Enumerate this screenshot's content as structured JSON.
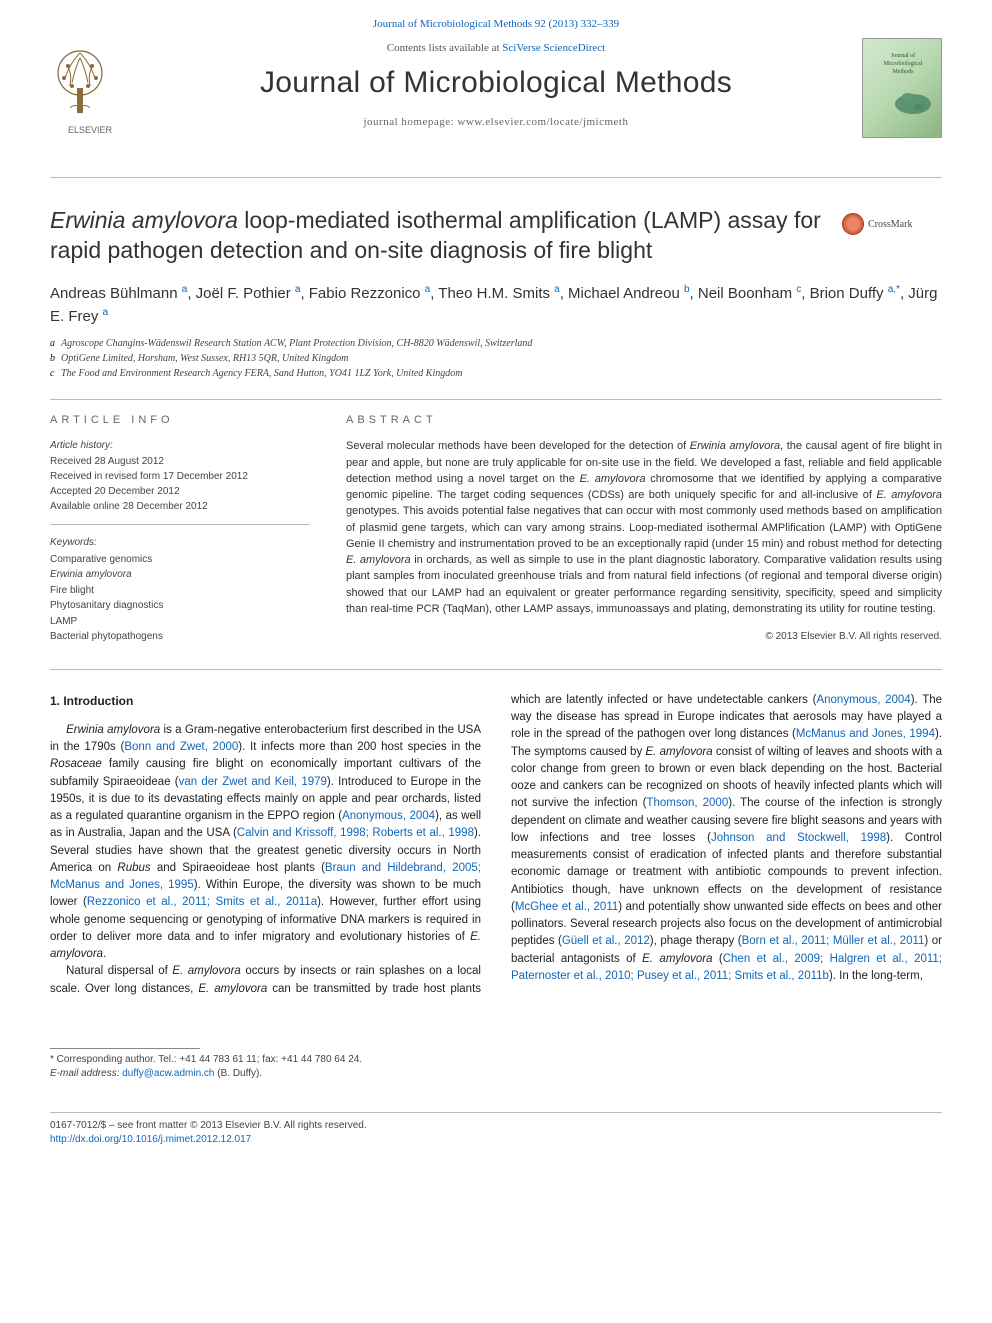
{
  "top_link": {
    "prefix": "Journal of Microbiological Methods 92 (2013) 332–339"
  },
  "header": {
    "contents_prefix": "Contents lists available at ",
    "contents_link": "SciVerse ScienceDirect",
    "journal_title": "Journal of Microbiological Methods",
    "homepage": "journal homepage: www.elsevier.com/locate/jmicmeth",
    "publisher": "ELSEVIER"
  },
  "crossmark_label": "CrossMark",
  "article": {
    "title_html": "<em>Erwinia amylovora</em> loop-mediated isothermal amplification (LAMP) assay for rapid pathogen detection and on-site diagnosis of fire blight",
    "authors_html": "Andreas Bühlmann <span class='sup'>a</span>, Joël F. Pothier <span class='sup'>a</span>, Fabio Rezzonico <span class='sup'>a</span>, Theo H.M. Smits <span class='sup'>a</span>, Michael Andreou <span class='sup'>b</span>, Neil Boonham <span class='sup'>c</span>, Brion Duffy <span class='sup'>a,*</span>, Jürg E. Frey <span class='sup'>a</span>",
    "affiliations": [
      {
        "label": "a",
        "text": "Agroscope Changins-Wädenswil Research Station ACW, Plant Protection Division, CH-8820 Wädenswil, Switzerland"
      },
      {
        "label": "b",
        "text": "OptiGene Limited, Horsham, West Sussex, RH13 5QR, United Kingdom"
      },
      {
        "label": "c",
        "text": "The Food and Environment Research Agency FERA, Sand Hutton, YO41 1LZ York, United Kingdom"
      }
    ]
  },
  "article_info": {
    "heading": "article info",
    "history_head": "Article history:",
    "history": [
      "Received 28 August 2012",
      "Received in revised form 17 December 2012",
      "Accepted 20 December 2012",
      "Available online 28 December 2012"
    ],
    "keywords_head": "Keywords:",
    "keywords": [
      "Comparative genomics",
      "<em>Erwinia amylovora</em>",
      "Fire blight",
      "Phytosanitary diagnostics",
      "LAMP",
      "Bacterial phytopathogens"
    ]
  },
  "abstract": {
    "heading": "abstract",
    "text_html": "Several molecular methods have been developed for the detection of <em>Erwinia amylovora</em>, the causal agent of fire blight in pear and apple, but none are truly applicable for on-site use in the field. We developed a fast, reliable and field applicable detection method using a novel target on the <em>E. amylovora</em> chromosome that we identified by applying a comparative genomic pipeline. The target coding sequences (CDSs) are both uniquely specific for and all-inclusive of <em>E. amylovora</em> genotypes. This avoids potential false negatives that can occur with most commonly used methods based on amplification of plasmid gene targets, which can vary among strains. Loop-mediated isothermal AMPlification (LAMP) with OptiGene Genie II chemistry and instrumentation proved to be an exceptionally rapid (under 15 min) and robust method for detecting <em>E. amylovora</em> in orchards, as well as simple to use in the plant diagnostic laboratory. Comparative validation results using plant samples from inoculated greenhouse trials and from natural field infections (of regional and temporal diverse origin) showed that our LAMP had an equivalent or greater performance regarding sensitivity, specificity, speed and simplicity than real-time PCR (TaqMan), other LAMP assays, immunoassays and plating, demonstrating its utility for routine testing.",
    "copyright": "© 2013 Elsevier B.V. All rights reserved."
  },
  "body": {
    "section_heading": "1. Introduction",
    "para1_html": "<em>Erwinia amylovora</em> is a Gram-negative enterobacterium first described in the USA in the 1790s (<span class='cite'>Bonn and Zwet, 2000</span>). It infects more than 200 host species in the <em>Rosaceae</em> family causing fire blight on economically important cultivars of the subfamily Spiraeoideae (<span class='cite'>van der Zwet and Keil, 1979</span>). Introduced to Europe in the 1950s, it is due to its devastating effects mainly on apple and pear orchards, listed as a regulated quarantine organism in the EPPO region (<span class='cite'>Anonymous, 2004</span>), as well as in Australia, Japan and the USA (<span class='cite'>Calvin and Krissoff, 1998; Roberts et al., 1998</span>). Several studies have shown that the greatest genetic diversity occurs in North America on <em>Rubus</em> and Spiraeoideae host plants (<span class='cite'>Braun and Hildebrand, 2005; McManus and Jones, 1995</span>). Within Europe, the diversity was shown to be much lower (<span class='cite'>Rezzonico et al., 2011; Smits et al., 2011a</span>). However, further effort using whole genome sequencing or genotyping of informative DNA markers is required in order to deliver more data and to infer migratory and evolutionary histories of <em>E. amylovora</em>.",
    "para2_html": "Natural dispersal of <em>E. amylovora</em> occurs by insects or rain splashes on a local scale. Over long distances, <em>E. amylovora</em> can be transmitted by trade host plants which are latently infected or have undetectable cankers (<span class='cite'>Anonymous, 2004</span>). The way the disease has spread in Europe indicates that aerosols may have played a role in the spread of the pathogen over long distances (<span class='cite'>McManus and Jones, 1994</span>). The symptoms caused by <em>E. amylovora</em> consist of wilting of leaves and shoots with a color change from green to brown or even black depending on the host. Bacterial ooze and cankers can be recognized on shoots of heavily infected plants which will not survive the infection (<span class='cite'>Thomson, 2000</span>). The course of the infection is strongly dependent on climate and weather causing severe fire blight seasons and years with low infections and tree losses (<span class='cite'>Johnson and Stockwell, 1998</span>). Control measurements consist of eradication of infected plants and therefore substantial economic damage or treatment with antibiotic compounds to prevent infection. Antibiotics though, have unknown effects on the development of resistance (<span class='cite'>McGhee et al., 2011</span>) and potentially show unwanted side effects on bees and other pollinators. Several research projects also focus on the development of antimicrobial peptides (<span class='cite'>Güell et al., 2012</span>), phage therapy (<span class='cite'>Born et al., 2011; Müller et al., 2011</span>) or bacterial antagonists of <em>E. amylovora</em> (<span class='cite'>Chen et al., 2009; Halgren et al., 2011; Paternoster et al., 2010; Pusey et al., 2011; Smits et al., 2011b</span>). In the long-term,"
  },
  "footer": {
    "corresponding": "* Corresponding author. Tel.: +41 44 783 61 11; fax: +41 44 780 64 24.",
    "email_prefix": "E-mail address: ",
    "email": "duffy@acw.admin.ch",
    "email_suffix": " (B. Duffy).",
    "front_matter": "0167-7012/$ – see front matter © 2013 Elsevier B.V. All rights reserved.",
    "doi": "http://dx.doi.org/10.1016/j.mimet.2012.12.017"
  },
  "colors": {
    "link": "#1066b8",
    "text": "#222222",
    "rule": "#bbbbbb"
  }
}
